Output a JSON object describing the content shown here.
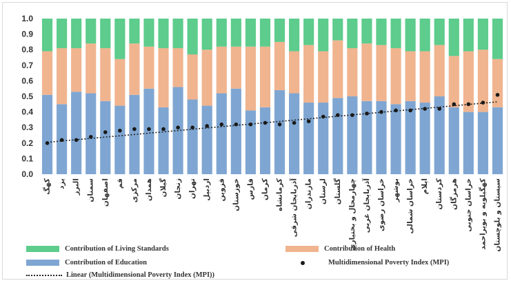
{
  "chart_data": {
    "type": "bar",
    "stacked": true,
    "ylim": [
      0,
      1
    ],
    "yticks": [
      "0.0",
      "0.1",
      "0.2",
      "0.3",
      "0.4",
      "0.5",
      "0.6",
      "0.7",
      "0.8",
      "0.9",
      "1.0"
    ],
    "grid": false,
    "legend_position": "bottom",
    "categories": [
      "كهگ",
      "يزد",
      "البرز",
      "سمنان",
      "اصفهان",
      "قم",
      "مرکزی",
      "همدان",
      "گيلان",
      "زنجان",
      "تهران",
      "اردبيل",
      "قزوين",
      "خوزستان",
      "فارس",
      "کرمان",
      "کرمانشاه",
      "آذربايجان شرقی",
      "مازندران",
      "لرستان",
      "گلستان",
      "چهارمحال و بختياری",
      "آذربايجان غربی",
      "خراسان رضوی",
      "بوشهر",
      "خراسان شمالی",
      "ايلام",
      "کردستان",
      "هرمزگان",
      "خراسان جنوبی",
      "کهگيلويه و بويراحمد",
      "سيستان و بلوچستان"
    ],
    "series": [
      {
        "name": "Contribution of Education",
        "color": "#7fa6d2",
        "values": [
          0.51,
          0.45,
          0.53,
          0.52,
          0.47,
          0.44,
          0.51,
          0.55,
          0.43,
          0.56,
          0.48,
          0.44,
          0.52,
          0.55,
          0.41,
          0.43,
          0.54,
          0.52,
          0.46,
          0.46,
          0.49,
          0.5,
          0.47,
          0.47,
          0.45,
          0.47,
          0.46,
          0.5,
          0.43,
          0.4,
          0.4,
          0.43
        ]
      },
      {
        "name": "Contribution of Health",
        "color": "#f0b48f",
        "values": [
          0.28,
          0.36,
          0.28,
          0.32,
          0.34,
          0.3,
          0.33,
          0.27,
          0.38,
          0.25,
          0.29,
          0.36,
          0.3,
          0.27,
          0.41,
          0.39,
          0.31,
          0.27,
          0.37,
          0.33,
          0.37,
          0.31,
          0.37,
          0.36,
          0.36,
          0.32,
          0.33,
          0.33,
          0.33,
          0.39,
          0.4,
          0.31
        ]
      },
      {
        "name": "Contribution of Living Standards",
        "color": "#5dcc8c",
        "values": [
          0.21,
          0.19,
          0.19,
          0.16,
          0.19,
          0.26,
          0.16,
          0.18,
          0.19,
          0.19,
          0.23,
          0.2,
          0.18,
          0.18,
          0.18,
          0.18,
          0.15,
          0.21,
          0.17,
          0.21,
          0.14,
          0.19,
          0.16,
          0.17,
          0.19,
          0.21,
          0.21,
          0.17,
          0.24,
          0.21,
          0.2,
          0.26
        ]
      }
    ],
    "mpi": {
      "name": "Multidimensional Poverty Index (MPI)",
      "values": [
        0.2,
        0.22,
        0.22,
        0.24,
        0.27,
        0.28,
        0.29,
        0.29,
        0.29,
        0.3,
        0.3,
        0.31,
        0.32,
        0.32,
        0.32,
        0.33,
        0.32,
        0.33,
        0.34,
        0.37,
        0.38,
        0.38,
        0.39,
        0.4,
        0.41,
        0.41,
        0.42,
        0.42,
        0.45,
        0.45,
        0.46,
        0.51
      ]
    },
    "trendline": {
      "name": "Linear (Multidimensional Poverty Index (MPI))",
      "start": 0.205,
      "end": 0.465
    }
  },
  "legend": {
    "living": "Contribution of Living Standards",
    "health": "Contribution of Health",
    "education": "Contribution of Education",
    "mpi": "Multidimensional Poverty Index (MPI)",
    "linear": "Linear (Multidimensional Poverty Index (MPI))"
  }
}
